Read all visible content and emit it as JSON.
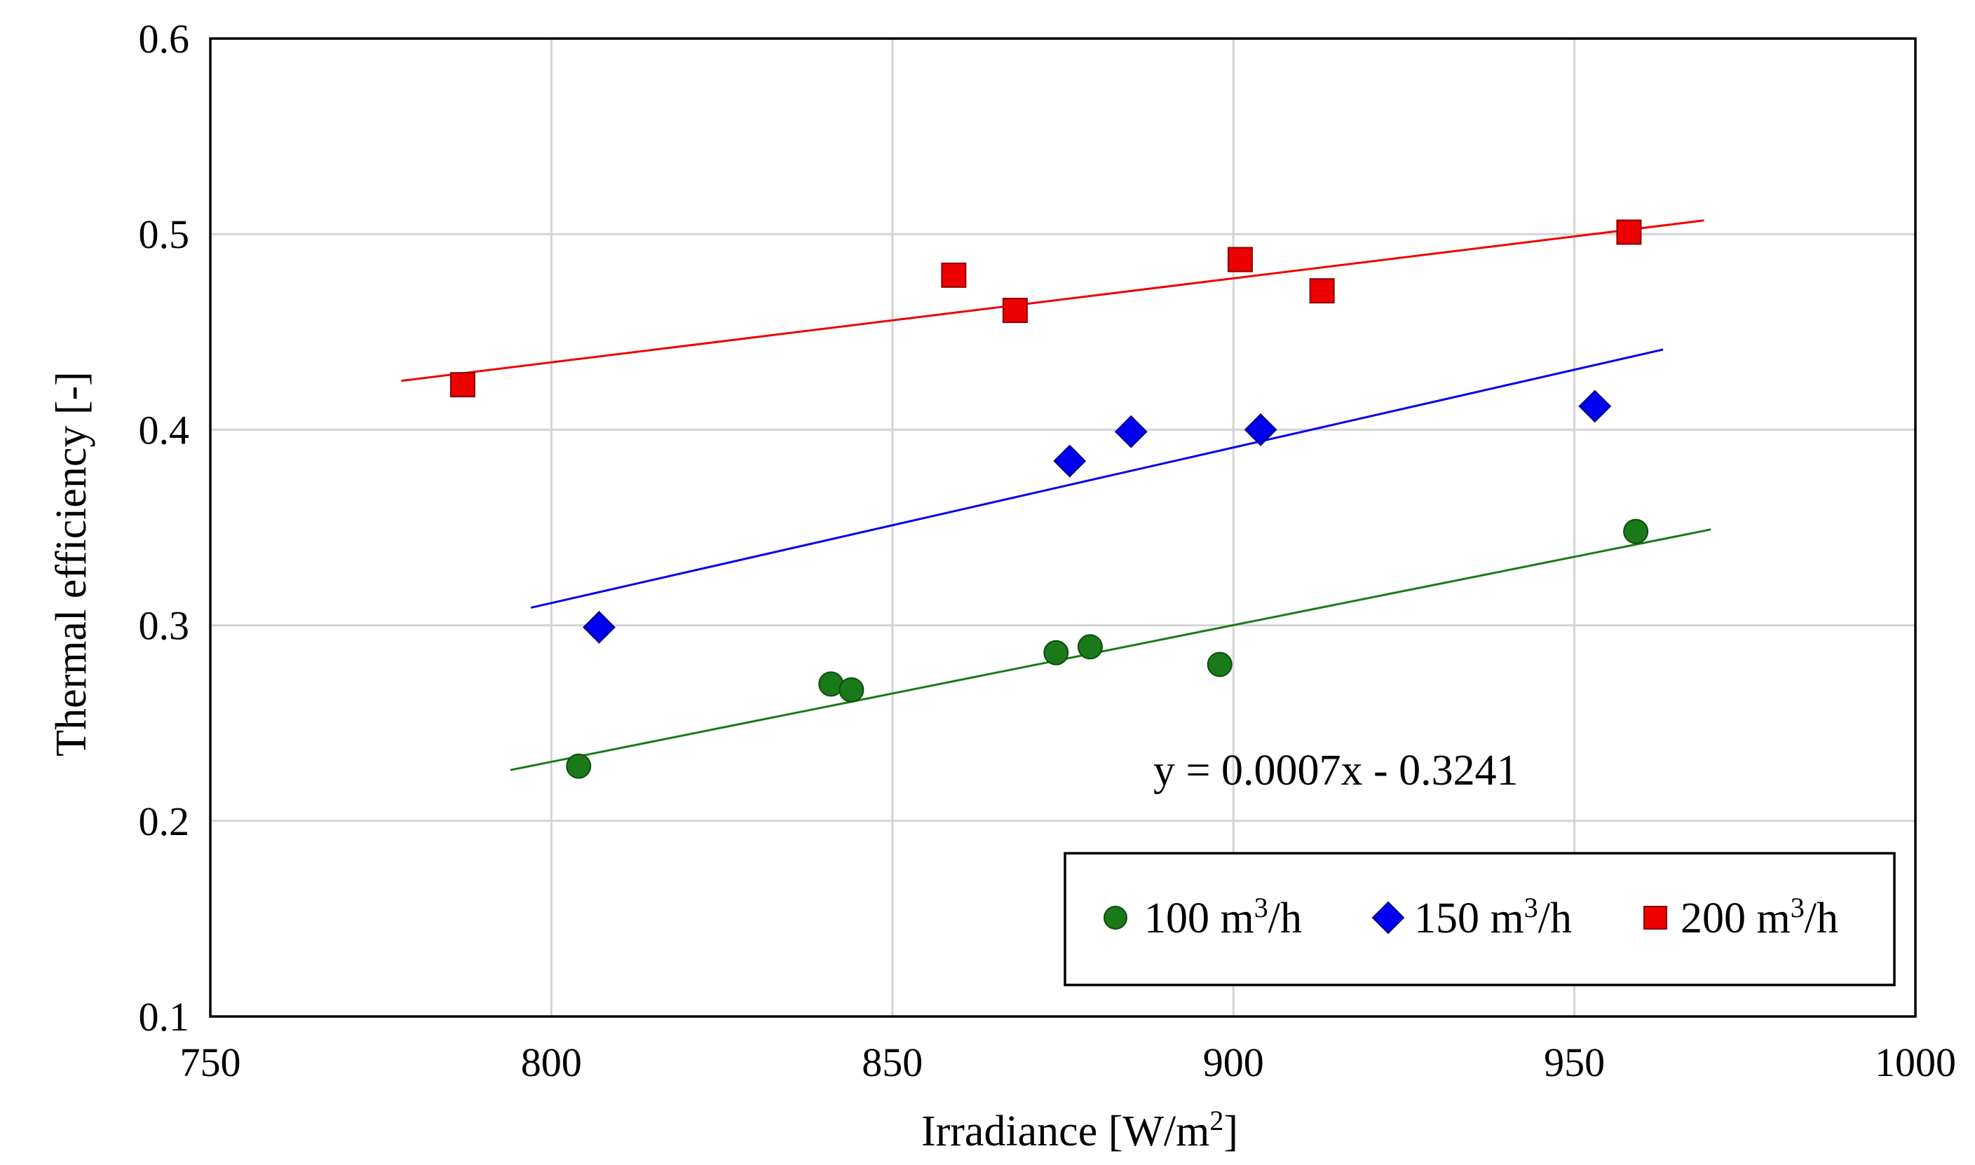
{
  "chart_data": {
    "type": "scatter",
    "xlabel": "Irradiance [W/m²]",
    "xlabel_main": "Irradiance [W/m",
    "xlabel_sup": "2",
    "xlabel_tail": "]",
    "ylabel": "Thermal efficiency [-]",
    "xlim": [
      750,
      1000
    ],
    "ylim": [
      0.1,
      0.6
    ],
    "xticks": [
      750,
      800,
      850,
      900,
      950,
      1000
    ],
    "yticks": [
      0.1,
      0.2,
      0.3,
      0.4,
      0.5,
      0.6
    ],
    "xtick_labels": [
      "750",
      "800",
      "850",
      "900",
      "950",
      "1000"
    ],
    "ytick_labels": [
      "0.1",
      "0.2",
      "0.3",
      "0.4",
      "0.5",
      "0.6"
    ],
    "grid": true,
    "legend_position": "bottom-right",
    "annotation": "y = 0.0007x - 0.3241",
    "series": [
      {
        "name": "100 m³/h",
        "label_main": "100 m",
        "label_sup": "3",
        "label_tail": "/h",
        "marker": "circle",
        "color": "#1a7a1a",
        "x": [
          804,
          841,
          844,
          874,
          879,
          898,
          959
        ],
        "y": [
          0.228,
          0.27,
          0.267,
          0.286,
          0.289,
          0.28,
          0.348
        ],
        "trend": {
          "x": [
            794,
            970
          ],
          "y": [
            0.226,
            0.349
          ]
        }
      },
      {
        "name": "150 m³/h",
        "label_main": "150 m",
        "label_sup": "3",
        "label_tail": "/h",
        "marker": "diamond",
        "color": "#0000ee",
        "x": [
          807,
          876,
          885,
          904,
          953
        ],
        "y": [
          0.299,
          0.384,
          0.399,
          0.4,
          0.412
        ],
        "trend": {
          "x": [
            797,
            963
          ],
          "y": [
            0.309,
            0.441
          ]
        }
      },
      {
        "name": "200 m³/h",
        "label_main": "200 m",
        "label_sup": "3",
        "label_tail": "/h",
        "marker": "square",
        "color": "#ee0000",
        "x": [
          787,
          859,
          868,
          901,
          913,
          958
        ],
        "y": [
          0.423,
          0.479,
          0.461,
          0.487,
          0.471,
          0.501
        ],
        "trend": {
          "x": [
            778,
            969
          ],
          "y": [
            0.425,
            0.507
          ]
        }
      }
    ]
  }
}
